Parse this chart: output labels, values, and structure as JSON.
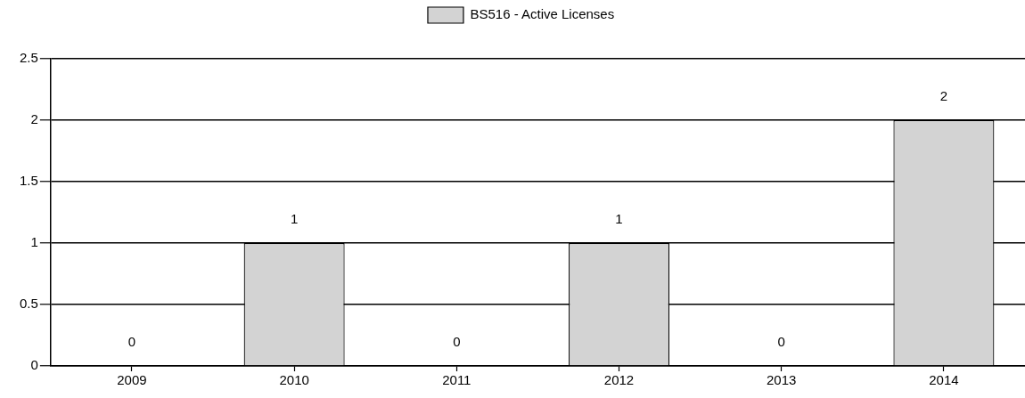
{
  "chart_data": {
    "type": "bar",
    "categories": [
      "2009",
      "2010",
      "2011",
      "2012",
      "2013",
      "2014"
    ],
    "series": [
      {
        "name": "BS516 - Active Licenses",
        "color": "#d3d3d3",
        "values": [
          0,
          1,
          0,
          1,
          0,
          2
        ]
      }
    ],
    "ylim": [
      0,
      2.5
    ],
    "yticks": [
      0,
      0.5,
      1,
      1.5,
      2,
      2.5
    ],
    "grid": "y",
    "legend": "top",
    "data_labels": true
  }
}
